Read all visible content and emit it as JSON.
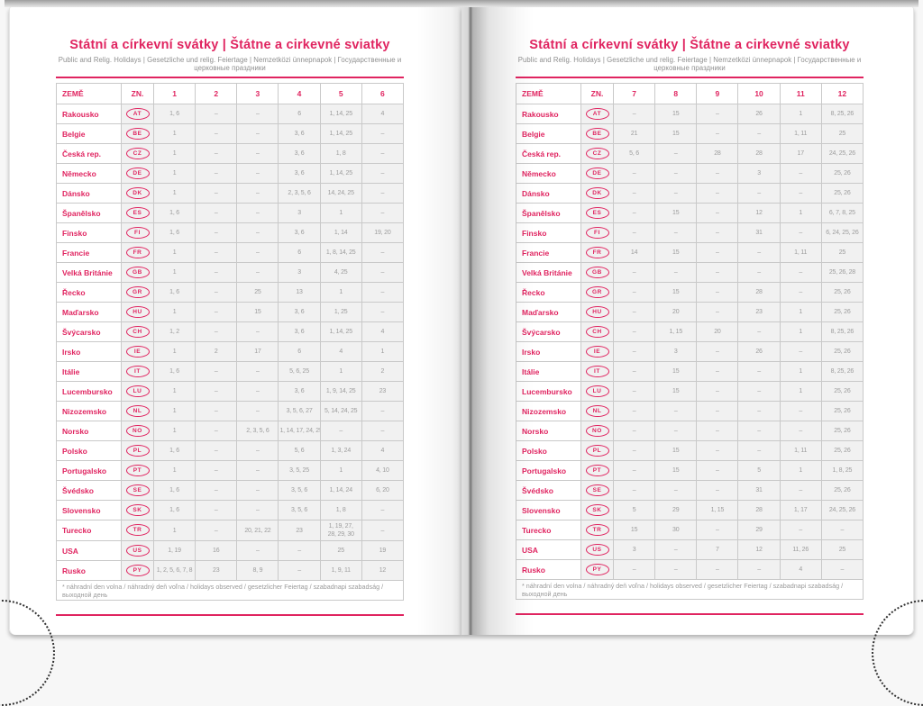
{
  "colors": {
    "accent": "#e02460",
    "cell_bg": "#f1f1f1",
    "cell_text": "#9c9c9c",
    "grid": "#c9c9c9"
  },
  "shared": {
    "title": "Státní a církevní svátky | Štátne a cirkevné sviatky",
    "subtitle": "Public and Relig. Holidays | Gesetzliche und relig. Feiertage | Nemzetközi ünnepnapok | Государственные и церковные праздники",
    "col_country": "ZEMĚ",
    "col_code": "ZN.",
    "footnote": "* náhradní den volna / náhradný deň voľna / holidays observed / gesetzlicher Feiertag / szabadnapi szabadság / выходной день",
    "countries": [
      {
        "name": "Rakousko",
        "code": "AT"
      },
      {
        "name": "Belgie",
        "code": "BE"
      },
      {
        "name": "Česká rep.",
        "code": "CZ"
      },
      {
        "name": "Německo",
        "code": "DE"
      },
      {
        "name": "Dánsko",
        "code": "DK"
      },
      {
        "name": "Španělsko",
        "code": "ES"
      },
      {
        "name": "Finsko",
        "code": "FI"
      },
      {
        "name": "Francie",
        "code": "FR"
      },
      {
        "name": "Velká Británie",
        "code": "GB"
      },
      {
        "name": "Řecko",
        "code": "GR"
      },
      {
        "name": "Maďarsko",
        "code": "HU"
      },
      {
        "name": "Švýcarsko",
        "code": "CH"
      },
      {
        "name": "Irsko",
        "code": "IE"
      },
      {
        "name": "Itálie",
        "code": "IT"
      },
      {
        "name": "Lucembursko",
        "code": "LU"
      },
      {
        "name": "Nizozemsko",
        "code": "NL"
      },
      {
        "name": "Norsko",
        "code": "NO"
      },
      {
        "name": "Polsko",
        "code": "PL"
      },
      {
        "name": "Portugalsko",
        "code": "PT"
      },
      {
        "name": "Švédsko",
        "code": "SE"
      },
      {
        "name": "Slovensko",
        "code": "SK"
      },
      {
        "name": "Turecko",
        "code": "TR"
      },
      {
        "name": "USA",
        "code": "US"
      },
      {
        "name": "Rusko",
        "code": "PY"
      }
    ]
  },
  "pages": [
    {
      "side": "left",
      "months": [
        "1",
        "2",
        "3",
        "4",
        "5",
        "6"
      ],
      "rows": [
        [
          "1, 6",
          "–",
          "–",
          "6",
          "1, 14, 25",
          "4"
        ],
        [
          "1",
          "–",
          "–",
          "3, 6",
          "1, 14, 25",
          "–"
        ],
        [
          "1",
          "–",
          "–",
          "3, 6",
          "1, 8",
          "–"
        ],
        [
          "1",
          "–",
          "–",
          "3, 6",
          "1, 14, 25",
          "–"
        ],
        [
          "1",
          "–",
          "–",
          "2, 3, 5, 6",
          "14, 24, 25",
          "–"
        ],
        [
          "1, 6",
          "–",
          "–",
          "3",
          "1",
          "–"
        ],
        [
          "1, 6",
          "–",
          "–",
          "3, 6",
          "1, 14",
          "19, 20"
        ],
        [
          "1",
          "–",
          "–",
          "6",
          "1, 8, 14, 25",
          "–"
        ],
        [
          "1",
          "–",
          "–",
          "3",
          "4, 25",
          "–"
        ],
        [
          "1, 6",
          "–",
          "25",
          "13",
          "1",
          "–"
        ],
        [
          "1",
          "–",
          "15",
          "3, 6",
          "1, 25",
          "–"
        ],
        [
          "1, 2",
          "–",
          "–",
          "3, 6",
          "1, 14, 25",
          "4"
        ],
        [
          "1",
          "2",
          "17",
          "6",
          "4",
          "1"
        ],
        [
          "1, 6",
          "–",
          "–",
          "5, 6, 25",
          "1",
          "2"
        ],
        [
          "1",
          "–",
          "–",
          "3, 6",
          "1, 9, 14, 25",
          "23"
        ],
        [
          "1",
          "–",
          "–",
          "3, 5, 6, 27",
          "5, 14, 24, 25",
          "–"
        ],
        [
          "1",
          "–",
          "2, 3, 5, 6",
          "1, 14, 17, 24, 25",
          "–",
          "–"
        ],
        [
          "1, 6",
          "–",
          "–",
          "5, 6",
          "1, 3, 24",
          "4"
        ],
        [
          "1",
          "–",
          "–",
          "3, 5, 25",
          "1",
          "4, 10"
        ],
        [
          "1, 6",
          "–",
          "–",
          "3, 5, 6",
          "1, 14, 24",
          "6, 20"
        ],
        [
          "1, 6",
          "–",
          "–",
          "3, 5, 6",
          "1, 8",
          "–"
        ],
        [
          "1",
          "–",
          "20, 21, 22",
          "23",
          "1, 19, 27, 28, 29, 30",
          "–"
        ],
        [
          "1, 19",
          "16",
          "–",
          "–",
          "25",
          "19"
        ],
        [
          "1, 2, 5, 6, 7, 8",
          "23",
          "8, 9",
          "–",
          "1, 9, 11",
          "12"
        ]
      ]
    },
    {
      "side": "right",
      "months": [
        "7",
        "8",
        "9",
        "10",
        "11",
        "12"
      ],
      "rows": [
        [
          "–",
          "15",
          "–",
          "26",
          "1",
          "8, 25, 26"
        ],
        [
          "21",
          "15",
          "–",
          "–",
          "1, 11",
          "25"
        ],
        [
          "5, 6",
          "–",
          "28",
          "28",
          "17",
          "24, 25, 26"
        ],
        [
          "–",
          "–",
          "–",
          "3",
          "–",
          "25, 26"
        ],
        [
          "–",
          "–",
          "–",
          "–",
          "–",
          "25, 26"
        ],
        [
          "–",
          "15",
          "–",
          "12",
          "1",
          "6, 7, 8, 25"
        ],
        [
          "–",
          "–",
          "–",
          "31",
          "–",
          "6, 24, 25, 26"
        ],
        [
          "14",
          "15",
          "–",
          "–",
          "1, 11",
          "25"
        ],
        [
          "–",
          "–",
          "–",
          "–",
          "–",
          "25, 26, 28"
        ],
        [
          "–",
          "15",
          "–",
          "28",
          "–",
          "25, 26"
        ],
        [
          "–",
          "20",
          "–",
          "23",
          "1",
          "25, 26"
        ],
        [
          "–",
          "1, 15",
          "20",
          "–",
          "1",
          "8, 25, 26"
        ],
        [
          "–",
          "3",
          "–",
          "26",
          "–",
          "25, 26"
        ],
        [
          "–",
          "15",
          "–",
          "–",
          "1",
          "8, 25, 26"
        ],
        [
          "–",
          "15",
          "–",
          "–",
          "1",
          "25, 26"
        ],
        [
          "–",
          "–",
          "–",
          "–",
          "–",
          "25, 26"
        ],
        [
          "–",
          "–",
          "–",
          "–",
          "–",
          "25, 26"
        ],
        [
          "–",
          "15",
          "–",
          "–",
          "1, 11",
          "25, 26"
        ],
        [
          "–",
          "15",
          "–",
          "5",
          "1",
          "1, 8, 25"
        ],
        [
          "–",
          "–",
          "–",
          "31",
          "–",
          "25, 26"
        ],
        [
          "5",
          "29",
          "1, 15",
          "28",
          "1, 17",
          "24, 25, 26"
        ],
        [
          "15",
          "30",
          "–",
          "29",
          "–",
          "–"
        ],
        [
          "3",
          "–",
          "7",
          "12",
          "11, 26",
          "25"
        ],
        [
          "–",
          "–",
          "–",
          "–",
          "4",
          "–"
        ]
      ]
    }
  ]
}
